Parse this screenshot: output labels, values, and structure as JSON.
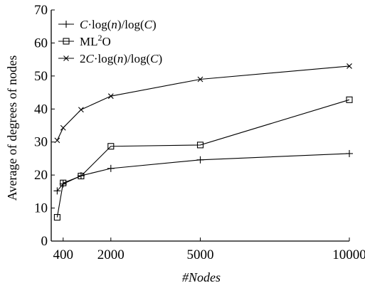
{
  "chart_data": {
    "type": "line",
    "xlabel": "#Nodes",
    "ylabel": "Average of degrees of nodes",
    "xlim": [
      0,
      10000
    ],
    "ylim": [
      0,
      70
    ],
    "xticks": [
      400,
      2000,
      5000,
      10000
    ],
    "yticks": [
      0,
      10,
      20,
      30,
      40,
      50,
      60,
      70
    ],
    "grid": false,
    "legend_position": "top-left",
    "series": [
      {
        "name": "C·log(n)/log(C)",
        "marker": "plus",
        "x": [
          200,
          400,
          1000,
          2000,
          5000,
          10000
        ],
        "values": [
          15.2,
          17.3,
          19.8,
          22.0,
          24.6,
          26.5
        ]
      },
      {
        "name": "ML2O",
        "marker": "square",
        "x": [
          200,
          400,
          1000,
          2000,
          5000,
          10000
        ],
        "values": [
          7.2,
          17.6,
          19.7,
          28.7,
          29.1,
          42.8
        ]
      },
      {
        "name": "2C·log(n)/log(C)",
        "marker": "cross",
        "x": [
          200,
          400,
          1000,
          2000,
          5000,
          10000
        ],
        "values": [
          30.5,
          34.3,
          39.8,
          43.9,
          49.0,
          53.0
        ]
      }
    ]
  }
}
